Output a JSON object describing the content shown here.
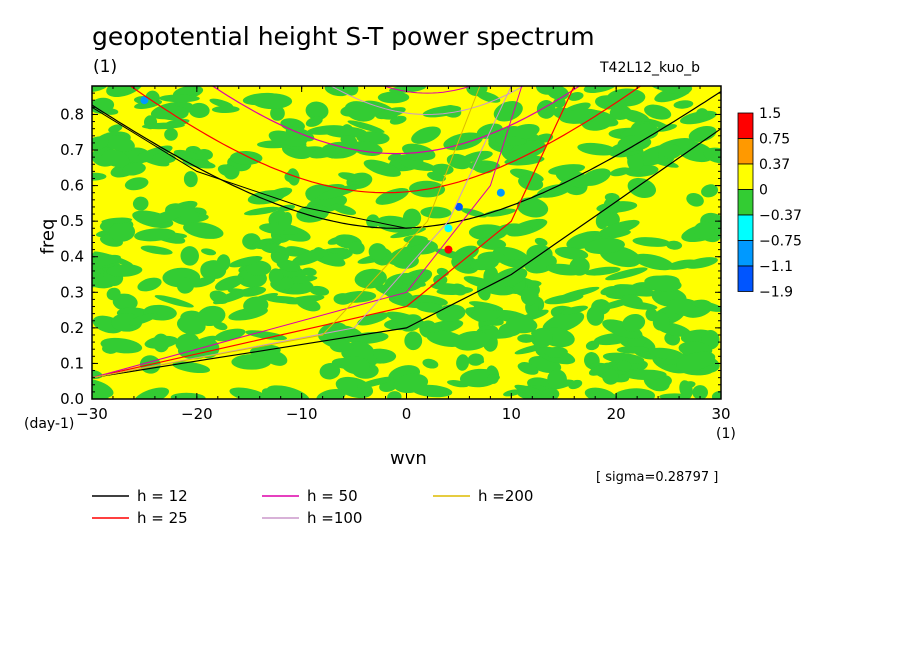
{
  "header": {
    "title": "geopotential height S-T power spectrum",
    "units_top": "(1)",
    "run_id": "T42L12_kuo_b",
    "sigma": "[ sigma=0.28797 ]",
    "ylabel": "freq",
    "xlabel": "wvn",
    "yunit": "(day-1)",
    "xunit": "(1)"
  },
  "chart_data": {
    "type": "heatmap",
    "title": "geopotential height S-T power spectrum",
    "xlabel": "wvn",
    "ylabel": "freq",
    "xlim": [
      -30,
      30
    ],
    "ylim": [
      0.0,
      0.88
    ],
    "x_ticks": [
      -30,
      -20,
      -10,
      0,
      10,
      20,
      30
    ],
    "x_tick_labels": [
      "-30",
      "-20",
      "-10",
      "0",
      "10",
      "20",
      "30"
    ],
    "y_ticks": [
      0.0,
      0.1,
      0.2,
      0.3,
      0.4,
      0.5,
      0.6,
      0.7,
      0.8
    ],
    "y_tick_labels": [
      "0.0",
      "0.1",
      "0.2",
      "0.3",
      "0.4",
      "0.5",
      "0.6",
      "0.7",
      "0.8"
    ],
    "colorbar": {
      "levels": [
        "1.5",
        "0.75",
        "0.37",
        "0",
        "-0.37",
        "-0.75",
        "-1.1",
        "-1.9"
      ],
      "colors": [
        "#ff0000",
        "#ff9900",
        "#ffff00",
        "#33cc33",
        "#00ffff",
        "#0099ff",
        "#0055ff"
      ]
    },
    "background_colors": {
      "positive": "#ffff00",
      "negative": "#33cc33"
    },
    "dispersion_curves": [
      {
        "name": "h = 12",
        "color": "#000000",
        "equiv_depth": 12
      },
      {
        "name": "h = 25",
        "color": "#ff0000",
        "equiv_depth": 25
      },
      {
        "name": "h = 50",
        "color": "#dd00aa",
        "equiv_depth": 50
      },
      {
        "name": "h =100",
        "color": "#cc99cc",
        "equiv_depth": 100
      },
      {
        "name": "h =200",
        "color": "#ddbb00",
        "equiv_depth": 200
      }
    ],
    "gravity_wave_minima": [
      {
        "h": 12,
        "x": -1,
        "y": 0.48
      },
      {
        "h": 25,
        "x": -2,
        "y": 0.58
      },
      {
        "h": 50,
        "x": -1,
        "y": 0.69
      }
    ],
    "kelvin_like_lines": [
      {
        "h": 12,
        "points": [
          [
            -30,
            0.06
          ],
          [
            0,
            0.2
          ],
          [
            10,
            0.35
          ],
          [
            30,
            0.76
          ]
        ]
      },
      {
        "h": 25,
        "points": [
          [
            -30,
            0.06
          ],
          [
            0,
            0.26
          ],
          [
            10,
            0.5
          ],
          [
            16,
            0.88
          ]
        ]
      }
    ],
    "extremes": [
      {
        "x": 4,
        "y": 0.42,
        "level": "1.5"
      },
      {
        "x": 5,
        "y": 0.54,
        "level": "-1.9"
      },
      {
        "x": 9,
        "y": 0.58,
        "level": "-0.75"
      },
      {
        "x": -25,
        "y": 0.84,
        "level": "-0.75"
      },
      {
        "x": 4,
        "y": 0.48,
        "level": "-0.37"
      }
    ]
  },
  "legend": [
    {
      "label": "h = 12",
      "color": "#000000"
    },
    {
      "label": "h = 25",
      "color": "#ff0000"
    },
    {
      "label": "h = 50",
      "color": "#dd00aa"
    },
    {
      "label": "h =100",
      "color": "#cc99cc"
    },
    {
      "label": "h =200",
      "color": "#ddbb00"
    }
  ]
}
